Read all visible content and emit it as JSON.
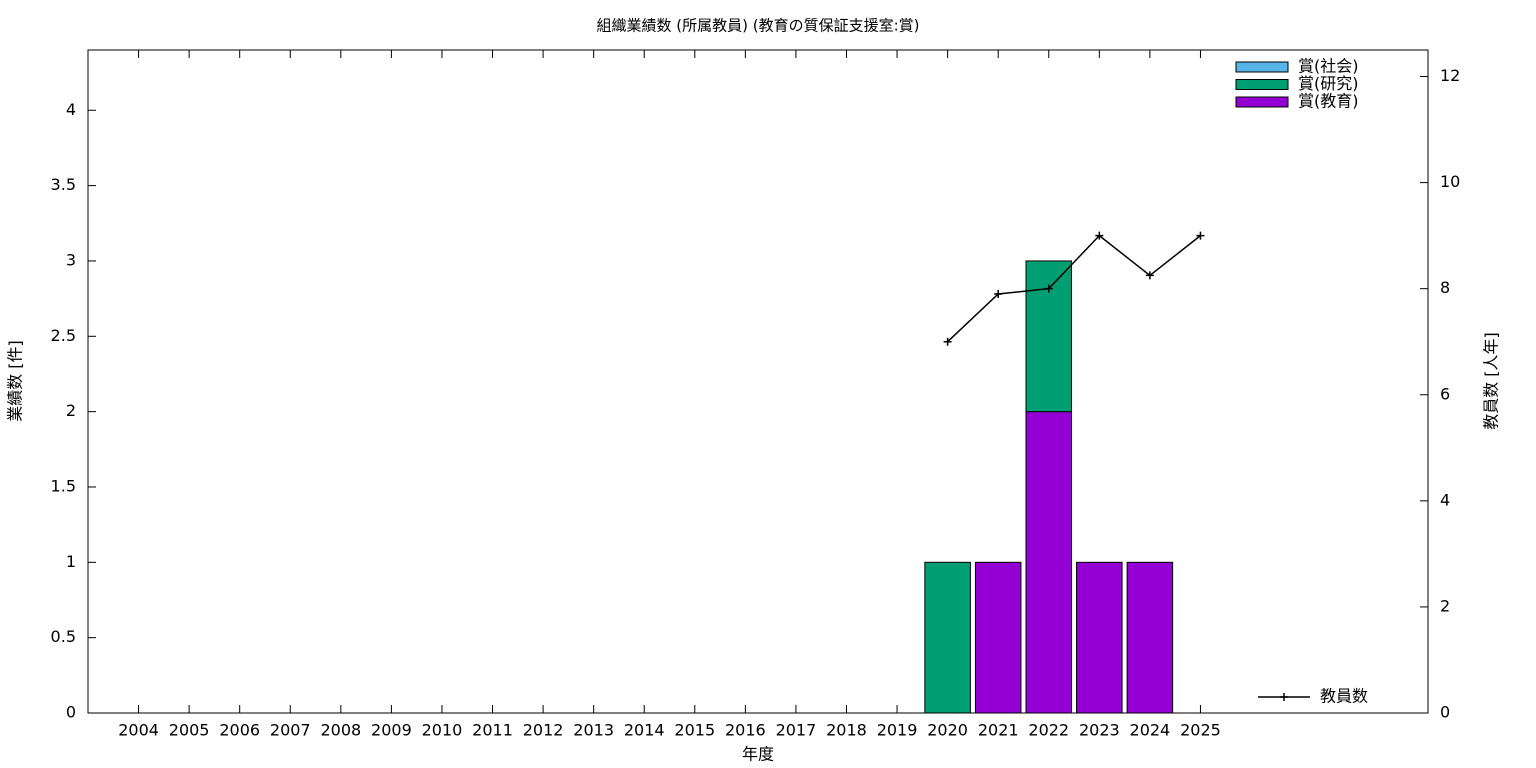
{
  "chart_data": {
    "type": "bar",
    "stacked": true,
    "title": "組織業績数 (所属教員) (教育の質保証支援室:賞)",
    "x_label": "年度",
    "y_label": "業績数 [件]",
    "y2_label": "教員数 [人年]",
    "categories": [
      "2004",
      "2005",
      "2006",
      "2007",
      "2008",
      "2009",
      "2010",
      "2011",
      "2012",
      "2013",
      "2014",
      "2015",
      "2016",
      "2017",
      "2018",
      "2019",
      "2020",
      "2021",
      "2022",
      "2023",
      "2024",
      "2025"
    ],
    "series": [
      {
        "name": "賞(教育)",
        "color": "#9400d3",
        "values": [
          0,
          0,
          0,
          0,
          0,
          0,
          0,
          0,
          0,
          0,
          0,
          0,
          0,
          0,
          0,
          0,
          0,
          1,
          2,
          1,
          1,
          0
        ]
      },
      {
        "name": "賞(研究)",
        "color": "#009e73",
        "values": [
          0,
          0,
          0,
          0,
          0,
          0,
          0,
          0,
          0,
          0,
          0,
          0,
          0,
          0,
          0,
          0,
          1,
          0,
          1,
          0,
          0,
          0
        ]
      },
      {
        "name": "賞(社会)",
        "color": "#56b4e9",
        "values": [
          0,
          0,
          0,
          0,
          0,
          0,
          0,
          0,
          0,
          0,
          0,
          0,
          0,
          0,
          0,
          0,
          0,
          0,
          0,
          0,
          0,
          0
        ]
      },
      {
        "name": "教員数",
        "type": "line",
        "axis": "y2",
        "color": "#000000",
        "values": [
          null,
          null,
          null,
          null,
          null,
          null,
          null,
          null,
          null,
          null,
          null,
          null,
          null,
          null,
          null,
          null,
          7,
          7.9,
          8,
          9,
          8.25,
          9
        ]
      }
    ],
    "ylim": [
      0,
      4.4
    ],
    "yticks": [
      0,
      0.5,
      1,
      1.5,
      2,
      2.5,
      3,
      3.5,
      4
    ],
    "y2lim": [
      0,
      12.5
    ],
    "y2ticks": [
      0,
      2,
      4,
      6,
      8,
      10,
      12
    ],
    "grid": false,
    "legend": "upper right"
  }
}
